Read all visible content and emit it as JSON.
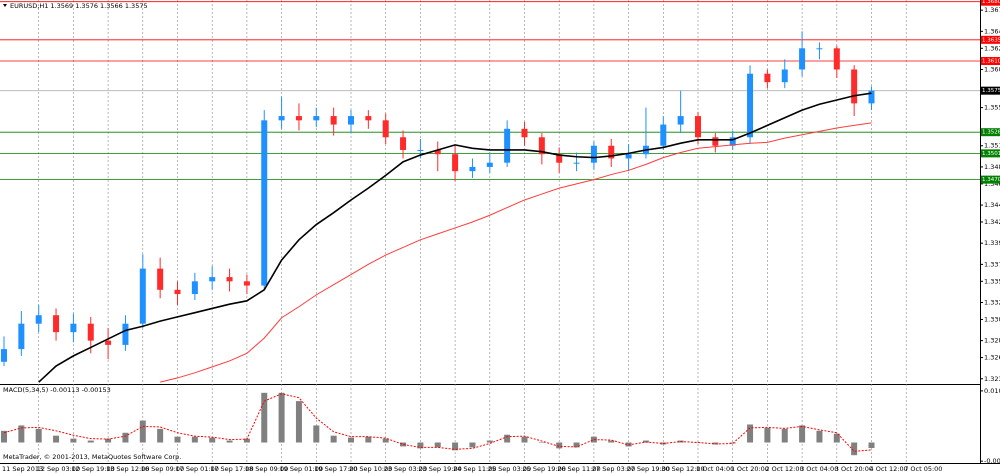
{
  "chart_data": [
    {
      "type": "candlestick",
      "title": "EURUSD,H1 1.3569 1.3576 1.3566 1.3575",
      "categories": [
        "11 Sep 2013",
        null,
        "12 Sep 03:00",
        null,
        "12 Sep 19:00",
        null,
        "13 Sep 12:00",
        null,
        "16 Sep 09:00",
        null,
        "17 Sep 01:00",
        null,
        "17 Sep 17:00",
        null,
        "18 Sep 09:00",
        null,
        "19 Sep 01:00",
        null,
        "19 Sep 17:00",
        null,
        "20 Sep 10:00",
        null,
        "23 Sep 03:00",
        null,
        "23 Sep 19:00",
        null,
        "24 Sep 11:00",
        null,
        "25 Sep 03:00",
        null,
        "25 Sep 19:00",
        null,
        "26 Sep 11:00",
        null,
        "27 Sep 03:00",
        null,
        "27 Sep 19:00",
        null,
        "30 Sep 12:00",
        null,
        "1 Oct 04:00",
        null,
        "1 Oct 20:00",
        null,
        "2 Oct 12:00",
        null,
        "3 Oct 04:00",
        null,
        "3 Oct 20:00",
        null,
        "4 Oct 12:00",
        null,
        "7 Oct 05:00"
      ],
      "open": [
        1.3255,
        1.327,
        1.33,
        1.331,
        1.329,
        1.33,
        1.328,
        1.3275,
        1.33,
        1.3365,
        1.334,
        1.3335,
        1.335,
        1.3355,
        1.335,
        1.3345,
        1.354,
        1.3545,
        1.354,
        1.3545,
        1.3535,
        1.3545,
        1.354,
        1.352,
        1.3505,
        1.3505,
        1.35,
        1.348,
        1.3485,
        1.349,
        1.353,
        1.352,
        1.35,
        1.349,
        1.349,
        1.351,
        1.3495,
        1.35,
        1.351,
        1.3535,
        1.3545,
        1.352,
        1.351,
        1.352,
        1.3595,
        1.3585,
        1.36,
        1.3625,
        1.3625,
        1.36,
        1.356,
        null,
        null
      ],
      "high": [
        1.3285,
        1.3315,
        1.3322,
        1.3318,
        1.3312,
        1.3308,
        1.3295,
        1.331,
        1.3382,
        1.3378,
        1.335,
        1.336,
        1.3368,
        1.3365,
        1.3358,
        1.3552,
        1.3568,
        1.356,
        1.3555,
        1.3555,
        1.3552,
        1.3552,
        1.3548,
        1.3528,
        1.3518,
        1.3515,
        1.351,
        1.3495,
        1.3502,
        1.354,
        1.3538,
        1.3525,
        1.3508,
        1.3502,
        1.3515,
        1.3518,
        1.3512,
        1.3555,
        1.3545,
        1.3575,
        1.355,
        1.3525,
        1.3528,
        1.3605,
        1.36,
        1.3612,
        1.3645,
        1.3632,
        1.3628,
        1.3605,
        1.358,
        null,
        null
      ],
      "low": [
        1.325,
        1.3262,
        1.329,
        1.328,
        1.3278,
        1.3265,
        1.3258,
        1.3268,
        1.3295,
        1.333,
        1.3322,
        1.3328,
        1.334,
        1.3338,
        1.3335,
        1.334,
        1.353,
        1.3528,
        1.3532,
        1.3522,
        1.3525,
        1.353,
        1.3512,
        1.3495,
        1.3495,
        1.348,
        1.3468,
        1.3472,
        1.3478,
        1.3485,
        1.351,
        1.3488,
        1.3478,
        1.348,
        1.3482,
        1.3485,
        1.348,
        1.3495,
        1.3505,
        1.3525,
        1.3512,
        1.3502,
        1.3505,
        1.3512,
        1.3578,
        1.3578,
        1.3592,
        1.3612,
        1.359,
        1.3545,
        1.3552,
        null,
        null
      ],
      "close": [
        1.327,
        1.33,
        1.331,
        1.329,
        1.33,
        1.328,
        1.3275,
        1.33,
        1.3365,
        1.334,
        1.3335,
        1.335,
        1.3355,
        1.335,
        1.3345,
        1.354,
        1.3545,
        1.354,
        1.3545,
        1.3535,
        1.3545,
        1.354,
        1.352,
        1.3505,
        1.3505,
        1.35,
        1.348,
        1.3485,
        1.349,
        1.353,
        1.352,
        1.35,
        1.349,
        1.349,
        1.351,
        1.3495,
        1.35,
        1.351,
        1.3535,
        1.3545,
        1.352,
        1.351,
        1.352,
        1.3595,
        1.3585,
        1.36,
        1.3625,
        1.3625,
        1.36,
        1.356,
        1.3575,
        null,
        null
      ],
      "colors": {
        "up": "#1e90ff",
        "down": "#ff2a2a"
      },
      "lines": [
        {
          "color": "#000000",
          "values": [
            null,
            null,
            1.3231,
            1.325,
            1.3262,
            1.3272,
            1.3282,
            1.3292,
            1.3297,
            1.3303,
            1.3308,
            1.3313,
            1.3318,
            1.3323,
            1.3327,
            1.334,
            1.3375,
            1.3399,
            1.3417,
            1.3431,
            1.3446,
            1.346,
            1.3475,
            1.3491,
            1.3499,
            1.3505,
            1.3511,
            1.3507,
            1.3505,
            1.3505,
            1.3505,
            1.3503,
            1.3499,
            1.3497,
            1.3496,
            1.3498,
            1.3501,
            1.3505,
            1.3508,
            1.3513,
            1.3517,
            1.3517,
            1.3517,
            1.3525,
            1.3534,
            1.3543,
            1.3552,
            1.3559,
            1.3564,
            1.3569,
            1.3572,
            null,
            null
          ]
        },
        {
          "color": "#ff3c3c",
          "values": [
            null,
            null,
            null,
            null,
            null,
            null,
            null,
            null,
            null,
            1.3231,
            1.3236,
            1.3242,
            1.3249,
            1.3256,
            1.3265,
            1.3283,
            1.3307,
            1.332,
            1.3334,
            1.3346,
            1.3358,
            1.337,
            1.3381,
            1.339,
            1.3399,
            1.3406,
            1.3413,
            1.342,
            1.3428,
            1.3437,
            1.3446,
            1.3453,
            1.346,
            1.3465,
            1.347,
            1.3476,
            1.3481,
            1.3488,
            1.3496,
            1.3502,
            1.3507,
            1.3509,
            1.3511,
            1.3513,
            1.3514,
            1.3519,
            1.3523,
            1.3527,
            1.3531,
            1.3534,
            1.3537,
            null,
            null
          ]
        }
      ],
      "levels": [
        {
          "value": 1.368,
          "label": "1.3680",
          "color": "#ff0000"
        },
        {
          "value": 1.3635,
          "label": "1.3635",
          "color": "#ff0000"
        },
        {
          "value": 1.361,
          "label": "1.3610",
          "color": "#ff0000"
        },
        {
          "value": 1.3575,
          "label": "1.3575",
          "color": "#000000"
        },
        {
          "value": 1.3526,
          "label": "1.3526",
          "color": "#008000"
        },
        {
          "value": 1.3501,
          "label": "1.3501",
          "color": "#008000"
        },
        {
          "value": 1.347,
          "label": "1.3470",
          "color": "#008000"
        }
      ],
      "ylim": [
        1.323,
        1.3682
      ],
      "yticks": [
        {
          "value": 1.367,
          "label": "1.3670"
        },
        {
          "value": 1.3645,
          "label": "1.3645"
        },
        {
          "value": 1.3625,
          "label": "1.3625"
        },
        {
          "value": 1.36,
          "label": "1.3600"
        },
        {
          "value": 1.3555,
          "label": "1.3555"
        },
        {
          "value": 1.351,
          "label": "1.3510"
        },
        {
          "value": 1.3485,
          "label": "1.3485"
        },
        {
          "value": 1.3465,
          "label": "1.3465"
        },
        {
          "value": 1.344,
          "label": "1.3440"
        },
        {
          "value": 1.342,
          "label": "1.3420"
        },
        {
          "value": 1.3395,
          "label": "1.3395"
        },
        {
          "value": 1.337,
          "label": "1.3370"
        },
        {
          "value": 1.335,
          "label": "1.3350"
        },
        {
          "value": 1.3325,
          "label": "1.3325"
        },
        {
          "value": 1.3305,
          "label": "1.3305"
        },
        {
          "value": 1.328,
          "label": "1.3280"
        },
        {
          "value": 1.326,
          "label": "1.3260"
        },
        {
          "value": 1.3235,
          "label": "1.3235"
        }
      ],
      "grid": true
    },
    {
      "type": "macd",
      "title": "MACD(5,34,5) -0.00113 -0.00153",
      "annotation": "MetaTrader, © 2001-2013, MetaQuotes Software Corp.",
      "histogram": {
        "color": "#808080",
        "values": [
          0.0024,
          0.0035,
          0.0028,
          0.0014,
          0.0008,
          0.0004,
          0.0008,
          0.002,
          0.0045,
          0.0028,
          0.0012,
          0.0012,
          0.001,
          0.0004,
          0.0008,
          0.0102,
          0.0102,
          0.0085,
          0.0035,
          0.0014,
          0.001,
          0.0012,
          0.0008,
          -0.0008,
          -0.0012,
          -0.001,
          -0.0016,
          -0.001,
          0.0004,
          0.0016,
          0.0012,
          0,
          -0.0012,
          -0.001,
          0.0012,
          0.0004,
          -0.0008,
          0.0004,
          -0.0004,
          0.0004,
          0,
          -0.0004,
          -0.0002,
          0.0037,
          0.003,
          0.0028,
          0.0035,
          0.0024,
          0.0018,
          -0.0026,
          -0.00113,
          null,
          null
        ]
      },
      "signal": {
        "color": "#ff0000",
        "values": [
          0.002,
          0.003,
          0.0031,
          0.0024,
          0.0015,
          0.0008,
          0.0007,
          0.0013,
          0.0033,
          0.0032,
          0.002,
          0.0013,
          0.0011,
          0.0006,
          0.0007,
          0.0085,
          0.01,
          0.0092,
          0.005,
          0.0022,
          0.0012,
          0.0012,
          0.0009,
          -0.0004,
          -0.001,
          -0.001,
          -0.0014,
          -0.0012,
          -0.0002,
          0.0012,
          0.0013,
          0.0003,
          -0.0008,
          -0.0009,
          0.0006,
          0.0005,
          -0.0005,
          0.0001,
          -0.0002,
          0.0002,
          0,
          -0.0003,
          -0.0002,
          0.003,
          0.0031,
          0.0029,
          0.0033,
          0.0026,
          0.002,
          -0.0018,
          -0.00153,
          null,
          null
        ]
      },
      "ylim": [
        -0.004,
        0.0116
      ],
      "yticks": [
        {
          "value": 0.0106,
          "label": "0.0106"
        },
        {
          "value": -0.00383,
          "label": "-0.00383"
        }
      ]
    }
  ]
}
